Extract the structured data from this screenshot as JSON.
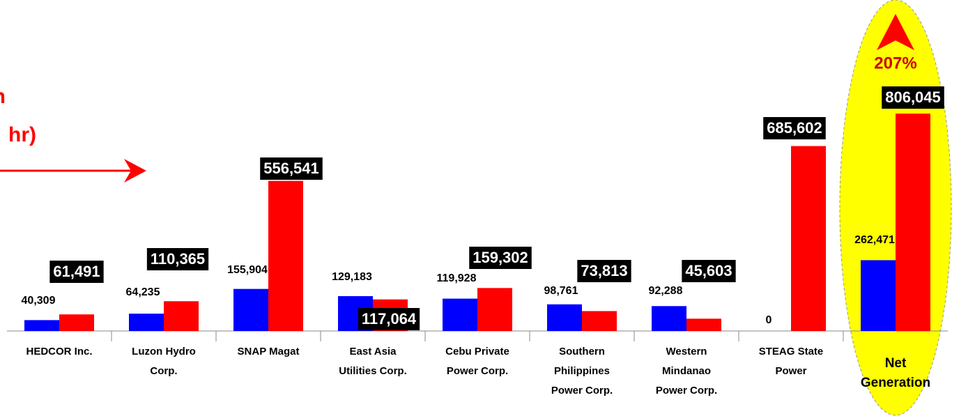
{
  "chart_data": {
    "type": "bar",
    "title": [
      "n",
      "hr)"
    ],
    "annotation": "207%",
    "categories": [
      [
        "HEDCOR Inc."
      ],
      [
        "Luzon Hydro",
        "Corp."
      ],
      [
        "SNAP Magat"
      ],
      [
        "East Asia",
        "Utilities Corp."
      ],
      [
        "Cebu Private",
        "Power Corp."
      ],
      [
        "Southern",
        "Philippines",
        "Power Corp."
      ],
      [
        "Western",
        "Mindanao",
        "Power Corp."
      ],
      [
        "STEAG State",
        "Power"
      ],
      [
        "Net",
        "Generation"
      ]
    ],
    "series": [
      {
        "color": "#0000ff",
        "values": [
          40309,
          64235,
          155904,
          129183,
          119928,
          98761,
          92288,
          0,
          262471
        ],
        "value_labels": [
          "40,309",
          "64,235",
          "155,904",
          "129,183",
          "119,928",
          "98,761",
          "92,288",
          "0",
          "262,471"
        ]
      },
      {
        "color": "#ff0000",
        "values": [
          61491,
          110365,
          556541,
          117064,
          159302,
          73813,
          45603,
          685602,
          806045
        ],
        "value_labels": [
          "61,491",
          "110,365",
          "556,541",
          "117,064",
          "159,302",
          "73,813",
          "45,603",
          "685,602",
          "806,045"
        ]
      }
    ],
    "ylim": [
      0,
      820000
    ]
  }
}
